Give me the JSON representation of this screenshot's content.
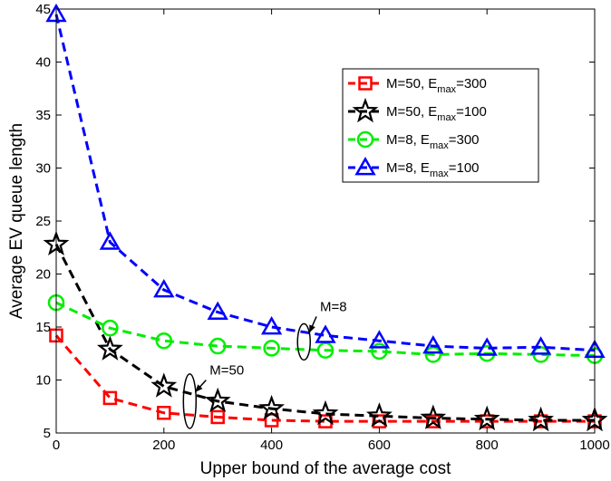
{
  "chart_data": {
    "type": "line",
    "xlabel": "Upper bound of the average cost",
    "ylabel": "Average EV queue length",
    "xlim": [
      0,
      1000
    ],
    "ylim": [
      5,
      45
    ],
    "xticks": [
      0,
      200,
      400,
      600,
      800,
      1000
    ],
    "yticks": [
      5,
      10,
      15,
      20,
      25,
      30,
      35,
      40,
      45
    ],
    "grid": false,
    "legend_position": "top-right",
    "x": [
      0,
      100,
      200,
      300,
      400,
      500,
      600,
      700,
      800,
      900,
      1000
    ],
    "series": [
      {
        "label_main": "M=50, E",
        "label_sub": "max",
        "label_tail": "=300",
        "color": "#ff0000",
        "marker": "square",
        "values": [
          14.2,
          8.3,
          6.9,
          6.5,
          6.2,
          6.1,
          6.1,
          6.1,
          6.1,
          6.1,
          6.1
        ]
      },
      {
        "label_main": "M=50, E",
        "label_sub": "max",
        "label_tail": "=100",
        "color": "#000000",
        "marker": "star",
        "values": [
          22.8,
          12.9,
          9.4,
          8.0,
          7.3,
          6.8,
          6.6,
          6.4,
          6.3,
          6.2,
          6.2
        ]
      },
      {
        "label_main": "M=8, E",
        "label_sub": "max",
        "label_tail": "=300",
        "color": "#00ee00",
        "marker": "circle",
        "values": [
          17.3,
          14.9,
          13.7,
          13.2,
          13.0,
          12.8,
          12.7,
          12.4,
          12.5,
          12.4,
          12.3
        ]
      },
      {
        "label_main": "M=8, E",
        "label_sub": "max",
        "label_tail": "=100",
        "color": "#0000ff",
        "marker": "triangle",
        "values": [
          44.5,
          23.0,
          18.5,
          16.4,
          15.0,
          14.2,
          13.7,
          13.2,
          13.0,
          13.1,
          12.8
        ]
      }
    ],
    "annotations": [
      {
        "text": "M=8",
        "ellipse_at": [
          460,
          13.6
        ],
        "text_at": [
          490,
          16.5
        ]
      },
      {
        "text": "M=50",
        "ellipse_at": [
          248,
          8.0
        ],
        "text_at": [
          285,
          10.5
        ]
      }
    ]
  }
}
